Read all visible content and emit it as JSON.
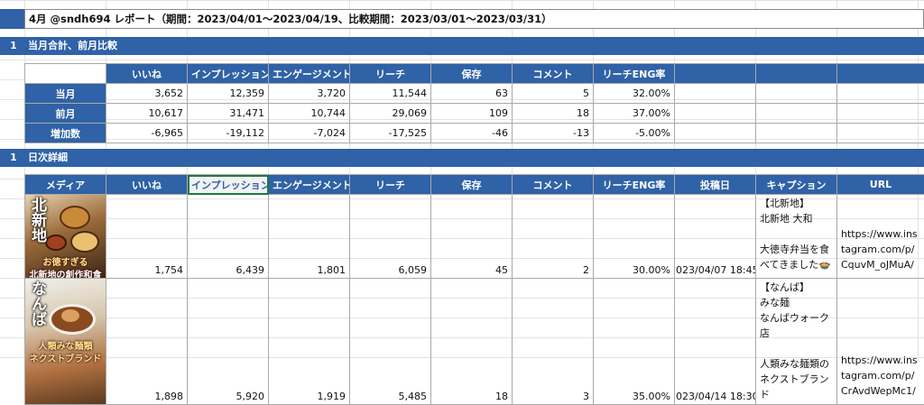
{
  "report_title": "4月 @sndh694 レポート（期間：2023/04/01～2023/04/19、比較期間：2023/03/01～2023/03/31）",
  "summary_section": {
    "num": "1",
    "label": "当月合計、前月比較"
  },
  "detail_section": {
    "num": "1",
    "label": "日次詳細"
  },
  "summary": {
    "headers": [
      "いいね",
      "インプレッション",
      "エンゲージメント",
      "リーチ",
      "保存",
      "コメント",
      "リーチENG率"
    ],
    "rows": [
      {
        "label": "当月",
        "values": [
          "3,652",
          "12,359",
          "3,720",
          "11,544",
          "63",
          "5",
          "32.00%"
        ]
      },
      {
        "label": "前月",
        "values": [
          "10,617",
          "31,471",
          "10,744",
          "29,069",
          "109",
          "18",
          "37.00%"
        ]
      },
      {
        "label": "増加数",
        "values": [
          "-6,965",
          "-19,112",
          "-7,024",
          "-17,525",
          "-46",
          "-13",
          "-5.00%"
        ]
      }
    ]
  },
  "detail": {
    "headers": [
      "メディア",
      "いいね",
      "インプレッション",
      "エンゲージメント",
      "リーチ",
      "保存",
      "コメント",
      "リーチENG率",
      "投稿日",
      "キャプション",
      "URL"
    ],
    "rows": [
      {
        "thumb_title": "北新地",
        "thumb_tag1": "お徳すぎる",
        "thumb_tag2": "北新地の創作和食",
        "values": [
          "1,754",
          "6,439",
          "1,801",
          "6,059",
          "45",
          "2",
          "30.00%"
        ],
        "date": "023/04/07 18:45",
        "caption": [
          "【北新地】",
          "北新地 大和",
          "",
          "大徳寺弁当を食べてきました🍲"
        ],
        "url": "https://www.instagram.com/p/CquvM_oJMuA/"
      },
      {
        "thumb_title": "なんば",
        "thumb_tag1": "人類みな麺類",
        "thumb_tag2": "ネクストブランド",
        "values": [
          "1,898",
          "5,920",
          "1,919",
          "5,485",
          "18",
          "3",
          "35.00%"
        ],
        "date": "023/04/14 18:30",
        "caption": [
          "【なんば】",
          "みな麺",
          "なんばウォーク店",
          "",
          "人類みな麺類のネクストブランド"
        ],
        "url": "https://www.instagram.com/p/CrAvdWepMc1/"
      }
    ]
  }
}
